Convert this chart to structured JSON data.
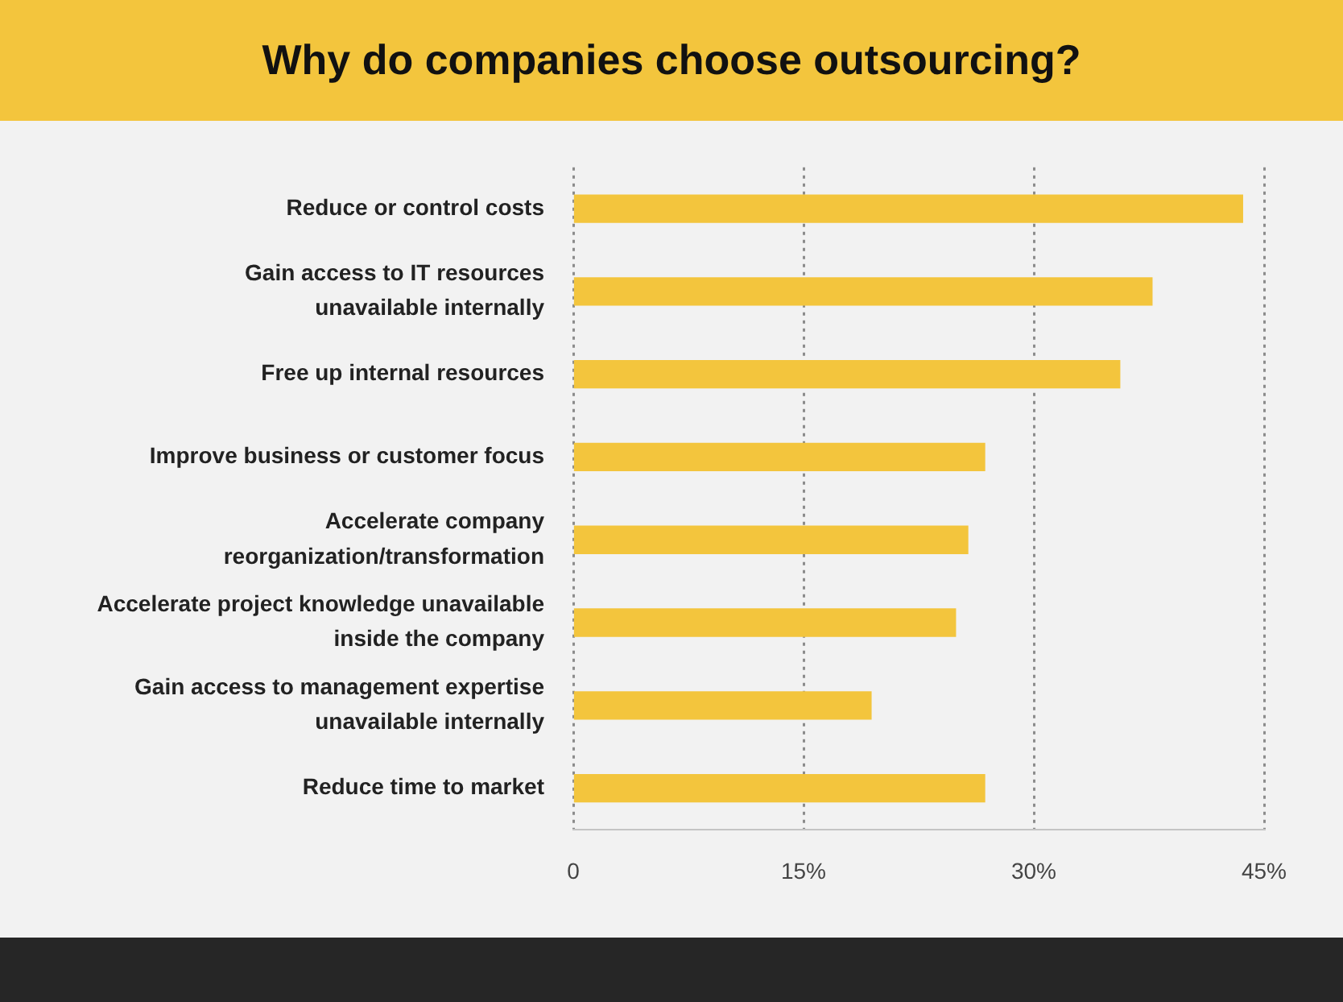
{
  "chart_data": {
    "type": "bar",
    "orientation": "horizontal",
    "title": "Why do companies choose outsourcing?",
    "categories": [
      "Reduce or control costs",
      "Gain access to IT resources\nunavailable internally",
      "Free up internal resources",
      "Improve business or customer focus",
      "Accelerate company\nreorganization/transformation",
      "Accelerate project knowledge unavailable\ninside the company",
      "Gain access to management expertise\nunavailable internally",
      "Reduce time to market"
    ],
    "values": [
      43.6,
      37.7,
      35.6,
      26.8,
      25.7,
      24.9,
      19.4,
      26.8
    ],
    "color": "#f3c53d",
    "xlim": [
      0,
      45
    ],
    "xticks": [
      0,
      {
        "value": 15,
        "label": "15%"
      },
      {
        "value": 30,
        "label": "30%"
      },
      {
        "value": 45,
        "label": "45%"
      }
    ],
    "grid": "x"
  }
}
